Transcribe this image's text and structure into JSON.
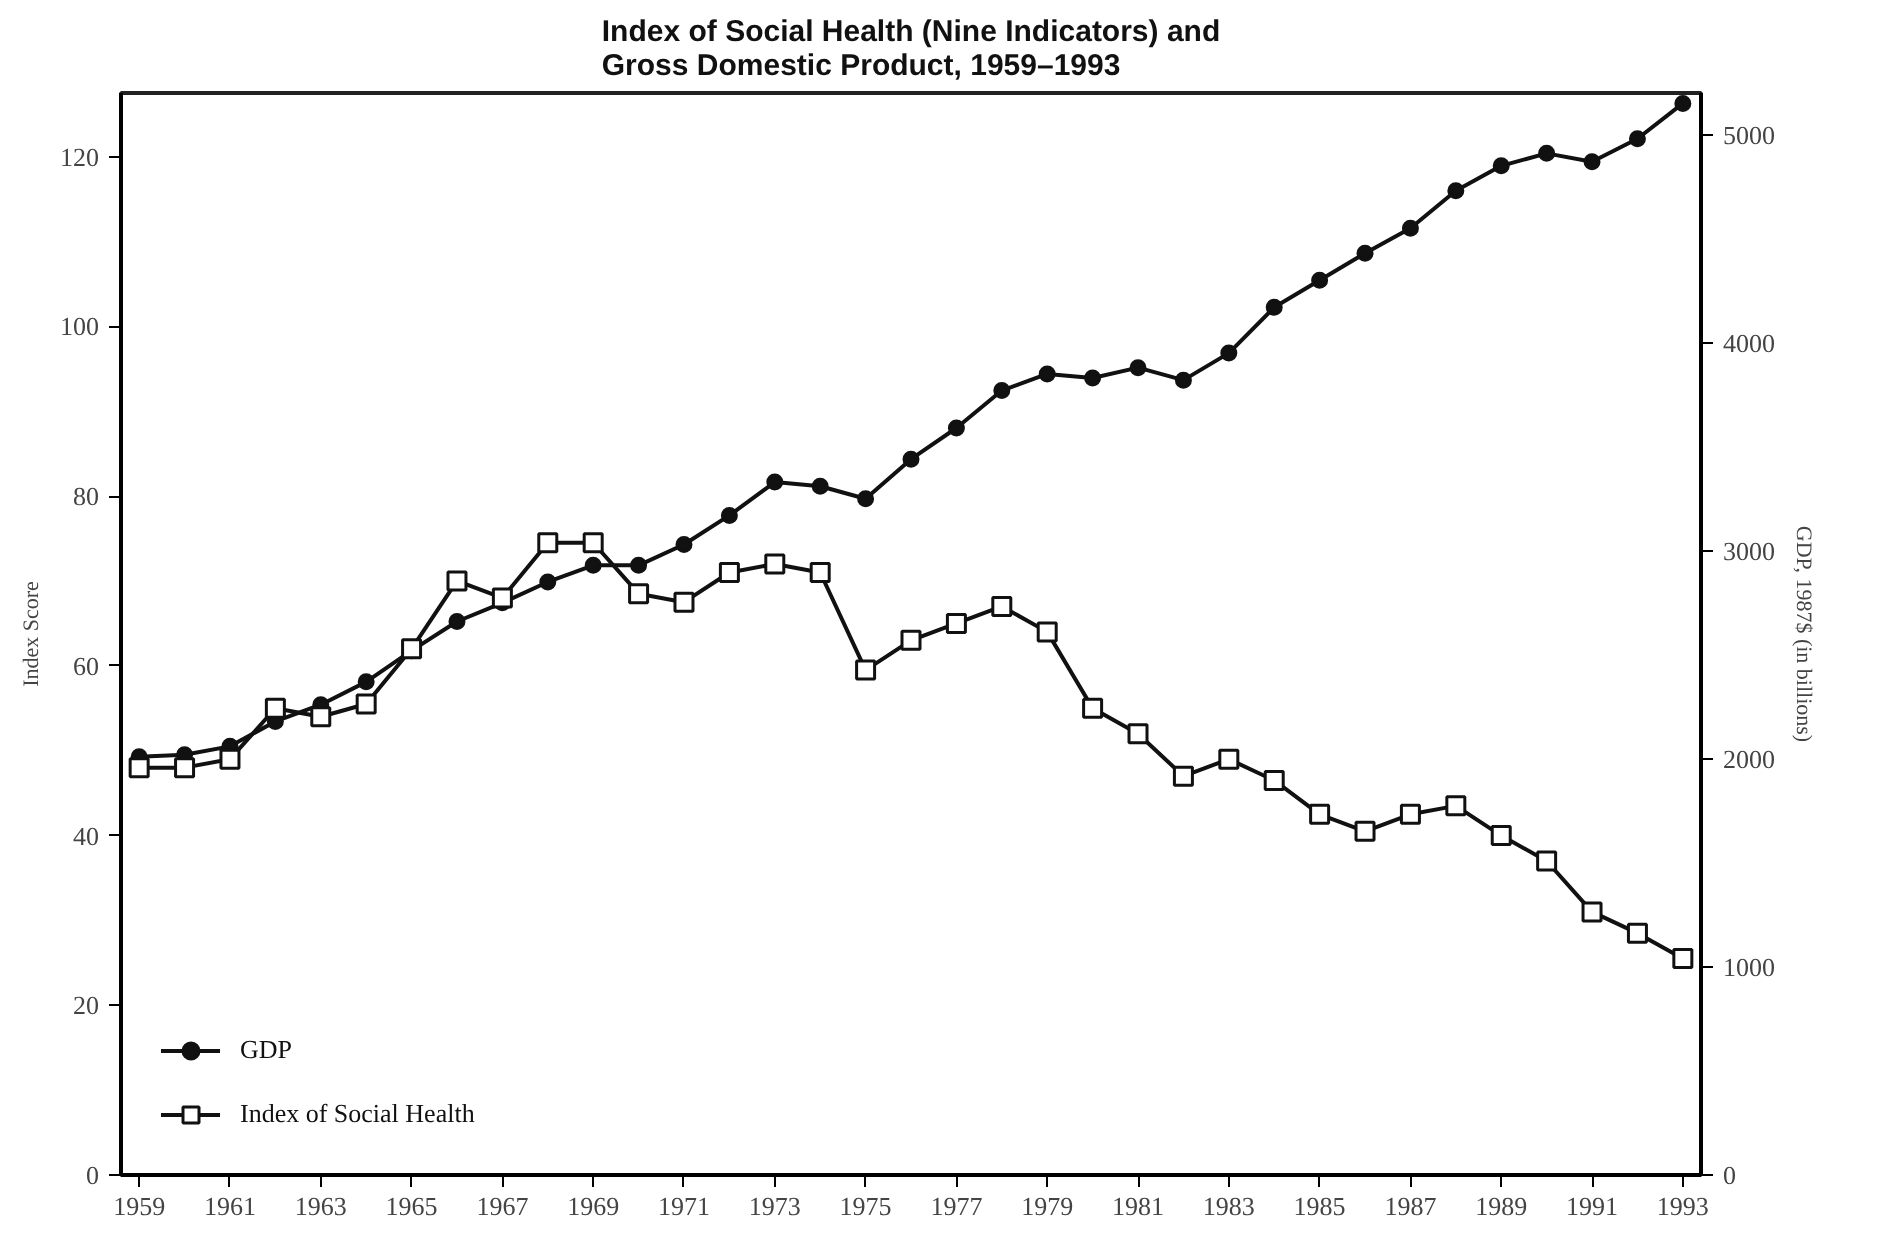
{
  "chart_data": {
    "type": "line",
    "title": "Index of Social Health (Nine Indicators) and\nGross Domestic Product, 1959–1993",
    "ylabel": "Index Score",
    "y2label": "GDP, 1987$ (in billions)",
    "x": [
      1959,
      1960,
      1961,
      1962,
      1963,
      1964,
      1965,
      1966,
      1967,
      1968,
      1969,
      1970,
      1971,
      1972,
      1973,
      1974,
      1975,
      1976,
      1977,
      1978,
      1979,
      1980,
      1981,
      1982,
      1983,
      1984,
      1985,
      1986,
      1987,
      1988,
      1989,
      1990,
      1991,
      1992,
      1993
    ],
    "series": [
      {
        "name": "GDP",
        "color": "#111111",
        "axis": "y2",
        "marker": "circle",
        "values": [
          2010,
          2020,
          2060,
          2180,
          2260,
          2370,
          2520,
          2660,
          2750,
          2850,
          2930,
          2930,
          3030,
          3170,
          3330,
          3310,
          3250,
          3440,
          3590,
          3770,
          3850,
          3830,
          3880,
          3820,
          3950,
          4170,
          4300,
          4430,
          4550,
          4730,
          4850,
          4910,
          4870,
          4980,
          5150
        ]
      },
      {
        "name": "Index of Social Health",
        "color": "#111111",
        "marker": "square",
        "values": [
          48,
          48,
          49,
          55,
          54,
          55.5,
          62,
          70,
          68,
          74.5,
          74.5,
          68.5,
          67.5,
          71,
          72,
          71,
          59.5,
          63,
          65,
          67,
          64,
          55,
          52,
          47,
          49,
          46.5,
          42.5,
          40.5,
          42.5,
          43.5,
          40,
          37,
          31,
          28.5,
          25.5
        ]
      }
    ],
    "xlim": [
      1958.6,
      1993.4
    ],
    "xticks": [
      1959,
      1961,
      1963,
      1965,
      1967,
      1969,
      1971,
      1973,
      1975,
      1977,
      1979,
      1981,
      1983,
      1985,
      1987,
      1989,
      1991,
      1993
    ],
    "ylim": [
      0,
      127.5
    ],
    "yticks": [
      0,
      20,
      40,
      60,
      80,
      100,
      120
    ],
    "y2lim": [
      0,
      5200
    ],
    "y2ticks": [
      0,
      1000,
      2000,
      3000,
      4000,
      5000
    ],
    "grid": false,
    "legend": "bottom left",
    "line_style": "solid"
  }
}
